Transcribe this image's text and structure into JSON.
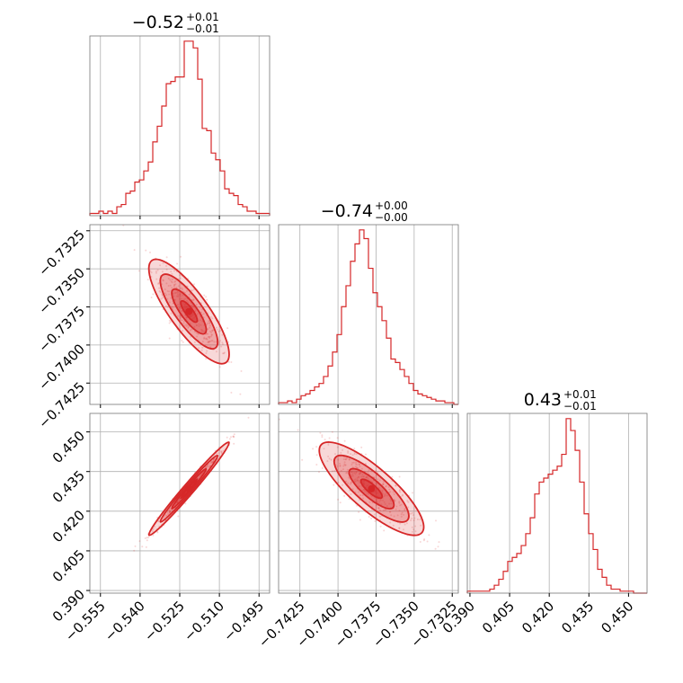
{
  "chart_data": {
    "type": "corner",
    "color": "#d62728",
    "grid": true,
    "parameters": [
      {
        "range": [
          -0.559,
          -0.491
        ],
        "ticks": [
          -0.555,
          -0.54,
          -0.525,
          -0.51,
          -0.495
        ],
        "tick_labels": [
          "−0.555",
          "−0.540",
          "−0.525",
          "−0.510",
          "−0.495"
        ],
        "title_main": "−0.52",
        "title_plus": "+0.01",
        "title_minus": "−0.01"
      },
      {
        "range": [
          -0.7439,
          -0.7321
        ],
        "ticks": [
          -0.7425,
          -0.74,
          -0.7375,
          -0.735,
          -0.7325
        ],
        "tick_labels": [
          "−0.7425",
          "−0.7400",
          "−0.7375",
          "−0.7350",
          "−0.7325"
        ],
        "title_main": "−0.74",
        "title_plus": "+0.00",
        "title_minus": "−0.00"
      },
      {
        "range": [
          0.389,
          0.457
        ],
        "ticks": [
          0.39,
          0.405,
          0.42,
          0.435,
          0.45
        ],
        "tick_labels": [
          "0.390",
          "0.405",
          "0.420",
          "0.435",
          "0.450"
        ],
        "title_main": "0.43",
        "title_plus": "+0.01",
        "title_minus": "−0.01"
      }
    ],
    "histograms": [
      {
        "param": 0,
        "counts": [
          1,
          1,
          2,
          1,
          2,
          1,
          4,
          5,
          10,
          11,
          15,
          16,
          20,
          24,
          33,
          40,
          49,
          59,
          60,
          62,
          62,
          78,
          78,
          75,
          61,
          39,
          38,
          28,
          25,
          20,
          12,
          10,
          9,
          5,
          4,
          2,
          2,
          1,
          1,
          1
        ]
      },
      {
        "param": 1,
        "counts": [
          1,
          1,
          2,
          1,
          3,
          5,
          6,
          8,
          10,
          12,
          16,
          22,
          30,
          40,
          56,
          68,
          82,
          92,
          100,
          95,
          78,
          64,
          56,
          48,
          38,
          26,
          24,
          20,
          16,
          12,
          8,
          6,
          5,
          4,
          3,
          2,
          2,
          1,
          1,
          0
        ]
      },
      {
        "param": 2,
        "counts": [
          1,
          1,
          1,
          1,
          1,
          2,
          4,
          7,
          11,
          16,
          18,
          20,
          24,
          30,
          38,
          50,
          56,
          58,
          60,
          62,
          64,
          70,
          88,
          82,
          72,
          56,
          40,
          30,
          22,
          12,
          8,
          4,
          2,
          2,
          1,
          1,
          1,
          0,
          0,
          0
        ]
      }
    ],
    "pairs": [
      {
        "x_param": 0,
        "y_param": 1,
        "center": [
          -0.5215,
          -0.7378
        ],
        "sx": 0.0062,
        "sy": 0.0014,
        "rho": -0.82
      },
      {
        "x_param": 0,
        "y_param": 2,
        "center": [
          -0.5215,
          0.4285
        ],
        "sx": 0.0062,
        "sy": 0.0072,
        "rho": 0.985
      },
      {
        "x_param": 1,
        "y_param": 2,
        "center": [
          -0.7378,
          0.4285
        ],
        "sx": 0.0014,
        "sy": 0.0072,
        "rho": -0.82
      }
    ]
  }
}
